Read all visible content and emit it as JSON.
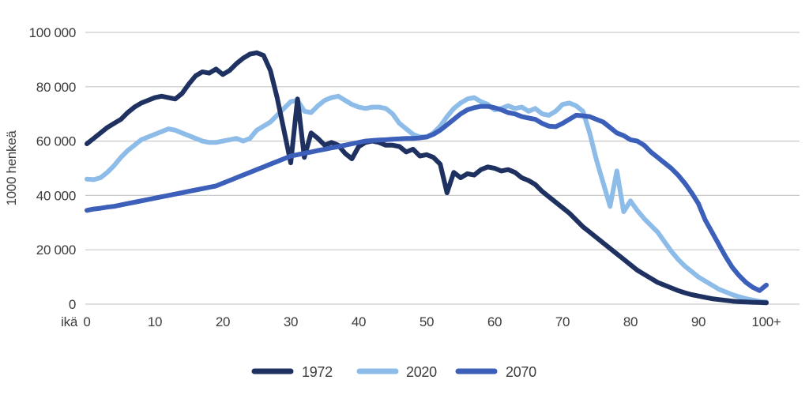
{
  "chart_data": {
    "type": "line",
    "title": "",
    "ylabel": "1000 henkeä",
    "xlabel": "ikä",
    "x_ticks": [
      "0",
      "10",
      "20",
      "30",
      "40",
      "50",
      "60",
      "70",
      "80",
      "90",
      "100+"
    ],
    "y_ticks": [
      "0",
      "20 000",
      "40 000",
      "60 000",
      "80 000",
      "100 000"
    ],
    "xlim": [
      0,
      100
    ],
    "ylim": [
      0,
      100000
    ],
    "grid": "horizontal-only",
    "legend_position": "bottom-center",
    "x_unit_years_per_point": 1,
    "colors": {
      "grid": "#c9c9c9",
      "text": "#3c3c3c",
      "background": "#ffffff"
    },
    "series": [
      {
        "name": "1972",
        "color": "#1e3160",
        "values": [
          59000,
          61000,
          63000,
          65000,
          66500,
          68000,
          70500,
          72500,
          74000,
          75000,
          76000,
          76500,
          76000,
          75500,
          77500,
          81000,
          84000,
          85500,
          85000,
          86500,
          84500,
          86000,
          88500,
          90500,
          92000,
          92500,
          91500,
          86000,
          76000,
          64000,
          52000,
          75500,
          54000,
          63000,
          61000,
          58500,
          59500,
          58500,
          55500,
          53500,
          58000,
          59500,
          60000,
          59500,
          58500,
          58500,
          58000,
          56000,
          57000,
          54500,
          55000,
          54000,
          51500,
          41000,
          48500,
          46500,
          48000,
          47500,
          49500,
          50500,
          50000,
          49000,
          49500,
          48500,
          46500,
          45500,
          44000,
          41500,
          39500,
          37500,
          35500,
          33500,
          31000,
          28500,
          26500,
          24500,
          22500,
          20500,
          18500,
          16500,
          14500,
          12500,
          11000,
          9500,
          8000,
          7000,
          6000,
          5000,
          4200,
          3500,
          3000,
          2500,
          2000,
          1700,
          1400,
          1100,
          900,
          800,
          700,
          600,
          500
        ]
      },
      {
        "name": "2020",
        "color": "#8ebce9",
        "values": [
          46000,
          45800,
          46500,
          48500,
          51000,
          54000,
          56500,
          58500,
          60500,
          61500,
          62500,
          63500,
          64500,
          64000,
          63000,
          62000,
          61000,
          60000,
          59500,
          59500,
          60000,
          60500,
          61000,
          60000,
          61000,
          64000,
          65500,
          67000,
          69500,
          72000,
          74500,
          75000,
          71000,
          70500,
          73000,
          75000,
          76000,
          76500,
          75000,
          73500,
          72500,
          72000,
          72500,
          72500,
          72000,
          70000,
          66500,
          64500,
          62500,
          61500,
          61500,
          63000,
          65500,
          69000,
          72000,
          74000,
          75500,
          76000,
          74500,
          73500,
          71500,
          72000,
          73000,
          72000,
          72500,
          71000,
          72000,
          70000,
          69500,
          71000,
          73500,
          74000,
          73000,
          71000,
          63000,
          53000,
          44500,
          36000,
          49000,
          34000,
          38000,
          34500,
          31500,
          29000,
          26500,
          23000,
          19500,
          16500,
          14000,
          12000,
          10000,
          8500,
          7000,
          5500,
          4500,
          3500,
          2700,
          2000,
          1500,
          1000,
          800
        ]
      },
      {
        "name": "2070",
        "color": "#3c5fba",
        "values": [
          34500,
          35000,
          35300,
          35700,
          36000,
          36500,
          37000,
          37500,
          38000,
          38500,
          39000,
          39500,
          40000,
          40500,
          41000,
          41500,
          42000,
          42500,
          43000,
          43500,
          44500,
          45500,
          46500,
          47500,
          48500,
          49500,
          50500,
          51500,
          52500,
          53500,
          54500,
          55000,
          55500,
          56000,
          56500,
          57000,
          57500,
          58000,
          58500,
          59000,
          59500,
          60000,
          60200,
          60400,
          60500,
          60700,
          60800,
          61000,
          61000,
          61200,
          61500,
          62500,
          64000,
          66000,
          68000,
          70000,
          71500,
          72300,
          72800,
          72800,
          72300,
          71500,
          70500,
          70000,
          69000,
          68500,
          68000,
          66500,
          65500,
          65300,
          66500,
          68000,
          69500,
          69300,
          69000,
          68000,
          67000,
          65000,
          63000,
          62000,
          60500,
          60000,
          58500,
          56000,
          54000,
          52000,
          50000,
          47500,
          44500,
          41000,
          37000,
          31000,
          26500,
          22000,
          17500,
          13500,
          10500,
          8000,
          6200,
          5000,
          7000
        ]
      }
    ]
  }
}
